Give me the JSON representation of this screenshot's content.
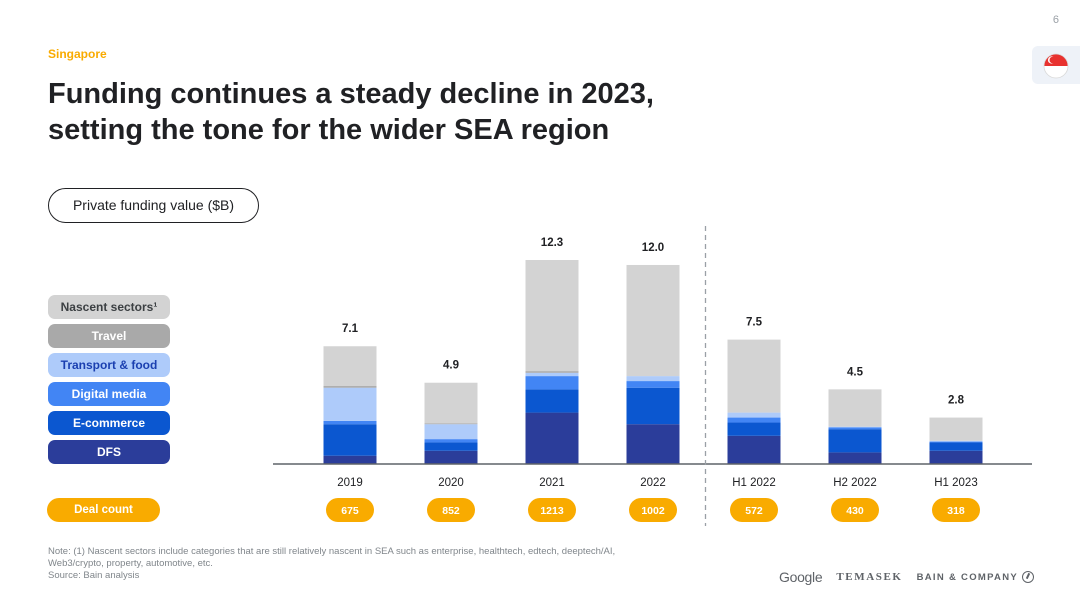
{
  "page": {
    "number": "6",
    "kicker": "Singapore"
  },
  "title": {
    "line1": "Funding continues a steady decline in 2023,",
    "line2": "setting the tone for the wider SEA region"
  },
  "metric_label": "Private funding value ($B)",
  "legend": {
    "items": [
      {
        "key": "nascent",
        "label": "Nascent sectors¹",
        "bg": "#d3d3d3",
        "fg": "#3c4043"
      },
      {
        "key": "travel",
        "label": "Travel",
        "bg": "#a9a9a9",
        "fg": "#ffffff"
      },
      {
        "key": "transport",
        "label": "Transport & food",
        "bg": "#aecbfa",
        "fg": "#1a3fb0"
      },
      {
        "key": "digital",
        "label": "Digital media",
        "bg": "#4285f4",
        "fg": "#ffffff"
      },
      {
        "key": "ecommerce",
        "label": "E-commerce",
        "bg": "#0b57d0",
        "fg": "#ffffff"
      },
      {
        "key": "dfs",
        "label": "DFS",
        "bg": "#2b3d9a",
        "fg": "#ffffff"
      }
    ]
  },
  "deal_count": {
    "label": "Deal count",
    "values": [
      "675",
      "852",
      "1213",
      "1002",
      "572",
      "430",
      "318"
    ]
  },
  "chart_data": {
    "type": "bar",
    "stacked": true,
    "ylabel": "Private funding value ($B)",
    "categories": [
      "2019",
      "2020",
      "2021",
      "2022",
      "H1 2022",
      "H2 2022",
      "H1 2023"
    ],
    "totals": [
      7.1,
      4.9,
      12.3,
      12.0,
      7.5,
      4.5,
      2.8
    ],
    "total_labels": [
      "7.1",
      "4.9",
      "12.3",
      "12.0",
      "7.5",
      "4.5",
      "2.8"
    ],
    "series": [
      {
        "name": "DFS",
        "color": "#2b3d9a",
        "values": [
          0.5,
          0.8,
          3.1,
          2.4,
          1.7,
          0.7,
          0.8
        ]
      },
      {
        "name": "E-commerce",
        "color": "#0b57d0",
        "values": [
          1.9,
          0.5,
          1.4,
          2.2,
          0.8,
          1.4,
          0.5
        ]
      },
      {
        "name": "Digital media",
        "color": "#4285f4",
        "values": [
          0.2,
          0.2,
          0.8,
          0.4,
          0.3,
          0.1,
          0.05
        ]
      },
      {
        "name": "Transport & food",
        "color": "#aecbfa",
        "values": [
          2.0,
          0.9,
          0.2,
          0.3,
          0.3,
          0.05,
          0.05
        ]
      },
      {
        "name": "Travel",
        "color": "#a9a9a9",
        "values": [
          0.1,
          0.05,
          0.1,
          0.0,
          0.0,
          0.0,
          0.0
        ]
      },
      {
        "name": "Nascent sectors",
        "color": "#d3d3d3",
        "values": [
          2.4,
          2.45,
          6.7,
          6.7,
          4.4,
          2.25,
          1.4
        ]
      }
    ],
    "divider_after": "2022",
    "ylim": [
      0,
      12.3
    ],
    "grid": false,
    "legend_position": "left"
  },
  "footer": {
    "note_line1": "Note: (1) Nascent sectors include categories that are still relatively nascent in SEA such as enterprise, healthtech, edtech, deeptech/AI,",
    "note_line2": "Web3/crypto, property, automotive, etc.",
    "source": "Source: Bain analysis",
    "logos": {
      "google": "Google",
      "temasek": "TEMASEK",
      "bain": "BAIN & COMPANY"
    }
  }
}
